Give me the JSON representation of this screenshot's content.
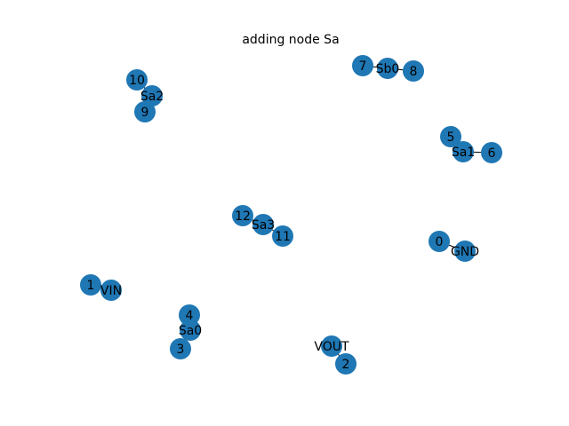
{
  "title": "adding node Sa",
  "node_color": "#1f77b4",
  "label_color": "#000000",
  "nodes": [
    {
      "id": "0",
      "label": "0"
    },
    {
      "id": "GND",
      "label": "GND"
    },
    {
      "id": "1",
      "label": "1"
    },
    {
      "id": "VIN",
      "label": "VIN"
    },
    {
      "id": "2",
      "label": "2"
    },
    {
      "id": "VOUT",
      "label": "VOUT"
    },
    {
      "id": "3",
      "label": "3"
    },
    {
      "id": "4",
      "label": "4"
    },
    {
      "id": "Sa0",
      "label": "Sa0"
    },
    {
      "id": "5",
      "label": "5"
    },
    {
      "id": "6",
      "label": "6"
    },
    {
      "id": "Sa1",
      "label": "Sa1"
    },
    {
      "id": "7",
      "label": "7"
    },
    {
      "id": "8",
      "label": "8"
    },
    {
      "id": "Sb0",
      "label": "Sb0"
    },
    {
      "id": "9",
      "label": "9"
    },
    {
      "id": "10",
      "label": "10"
    },
    {
      "id": "Sa2",
      "label": "Sa2"
    },
    {
      "id": "11",
      "label": "11"
    },
    {
      "id": "12",
      "label": "12"
    },
    {
      "id": "Sa3",
      "label": "Sa3"
    }
  ],
  "edges": [
    {
      "source": "0",
      "target": "GND"
    },
    {
      "source": "1",
      "target": "VIN"
    },
    {
      "source": "2",
      "target": "VOUT"
    },
    {
      "source": "3",
      "target": "Sa0"
    },
    {
      "source": "4",
      "target": "Sa0"
    },
    {
      "source": "5",
      "target": "Sa1"
    },
    {
      "source": "6",
      "target": "Sa1"
    },
    {
      "source": "7",
      "target": "Sb0"
    },
    {
      "source": "8",
      "target": "Sb0"
    },
    {
      "source": "9",
      "target": "Sa2"
    },
    {
      "source": "10",
      "target": "Sa2"
    },
    {
      "source": "11",
      "target": "Sa3"
    },
    {
      "source": "12",
      "target": "Sa3"
    }
  ]
}
